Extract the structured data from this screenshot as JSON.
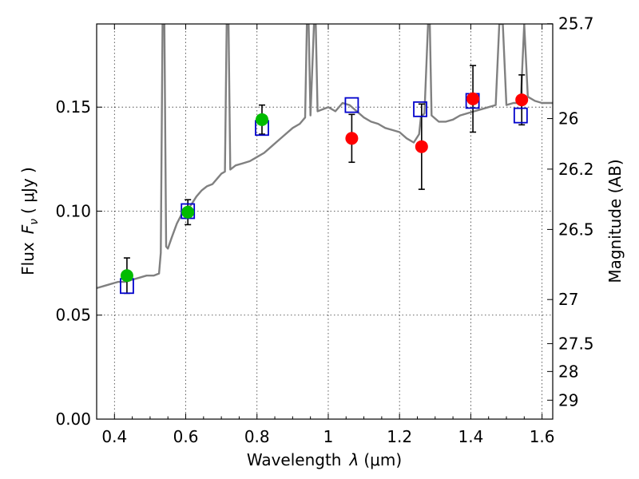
{
  "chart_data": {
    "type": "scatter",
    "title": "",
    "xlabel": "Wavelength",
    "xlabel_symbol": "λ",
    "xlabel_unit": "(μm)",
    "ylabel": "Flux",
    "ylabel_symbol": "F",
    "ylabel_subscript": "ν",
    "ylabel_unit": "( μJy )",
    "y2label": "Magnitude (AB)",
    "xlim": [
      0.35,
      1.63
    ],
    "ylim": [
      0.0,
      0.19
    ],
    "grid": true,
    "x_ticks": [
      0.4,
      0.6,
      0.8,
      1.0,
      1.2,
      1.4,
      1.6
    ],
    "x_tick_labels": [
      "0.4",
      "0.6",
      "0.8",
      "1",
      "1.2",
      "1.4",
      "1.6"
    ],
    "y_ticks": [
      0.0,
      0.05,
      0.1,
      0.15
    ],
    "y_tick_labels": [
      "0.00",
      "0.05",
      "0.10",
      "0.15"
    ],
    "y2_ticks": [
      {
        "label": "25.7",
        "flux": 0.1901
      },
      {
        "label": "26",
        "flux": 0.1445
      },
      {
        "label": "26.2",
        "flux": 0.1202
      },
      {
        "label": "26.5",
        "flux": 0.0912
      },
      {
        "label": "27",
        "flux": 0.0575
      },
      {
        "label": "27.5",
        "flux": 0.0363
      },
      {
        "label": "28",
        "flux": 0.0229
      },
      {
        "label": "29",
        "flux": 0.0091
      }
    ],
    "colors": {
      "model": "#808080",
      "green_points": "#00bb00",
      "red_points": "#ff0000",
      "model_photometry": "#0000cc",
      "errorbars": "#000000"
    },
    "model_spectrum": {
      "name": "",
      "points": [
        [
          0.35,
          0.063
        ],
        [
          0.37,
          0.064
        ],
        [
          0.39,
          0.065
        ],
        [
          0.41,
          0.066
        ],
        [
          0.43,
          0.066
        ],
        [
          0.45,
          0.067
        ],
        [
          0.47,
          0.068
        ],
        [
          0.49,
          0.069
        ],
        [
          0.51,
          0.069
        ],
        [
          0.525,
          0.07
        ],
        [
          0.53,
          0.08
        ],
        [
          0.535,
          0.19
        ],
        [
          0.54,
          0.19
        ],
        [
          0.545,
          0.083
        ],
        [
          0.55,
          0.082
        ],
        [
          0.56,
          0.087
        ],
        [
          0.575,
          0.094
        ],
        [
          0.59,
          0.099
        ],
        [
          0.6,
          0.1
        ],
        [
          0.615,
          0.103
        ],
        [
          0.63,
          0.107
        ],
        [
          0.645,
          0.11
        ],
        [
          0.66,
          0.112
        ],
        [
          0.675,
          0.113
        ],
        [
          0.69,
          0.116
        ],
        [
          0.7,
          0.118
        ],
        [
          0.71,
          0.119
        ],
        [
          0.715,
          0.19
        ],
        [
          0.72,
          0.19
        ],
        [
          0.725,
          0.12
        ],
        [
          0.74,
          0.122
        ],
        [
          0.76,
          0.123
        ],
        [
          0.78,
          0.124
        ],
        [
          0.8,
          0.126
        ],
        [
          0.82,
          0.128
        ],
        [
          0.84,
          0.131
        ],
        [
          0.86,
          0.134
        ],
        [
          0.88,
          0.137
        ],
        [
          0.9,
          0.14
        ],
        [
          0.92,
          0.142
        ],
        [
          0.935,
          0.145
        ],
        [
          0.94,
          0.19
        ],
        [
          0.945,
          0.19
        ],
        [
          0.95,
          0.146
        ],
        [
          0.96,
          0.19
        ],
        [
          0.965,
          0.19
        ],
        [
          0.97,
          0.148
        ],
        [
          1.0,
          0.15
        ],
        [
          1.02,
          0.148
        ],
        [
          1.04,
          0.152
        ],
        [
          1.06,
          0.151
        ],
        [
          1.08,
          0.148
        ],
        [
          1.1,
          0.145
        ],
        [
          1.12,
          0.143
        ],
        [
          1.14,
          0.142
        ],
        [
          1.16,
          0.14
        ],
        [
          1.18,
          0.139
        ],
        [
          1.2,
          0.138
        ],
        [
          1.22,
          0.135
        ],
        [
          1.24,
          0.133
        ],
        [
          1.255,
          0.137
        ],
        [
          1.26,
          0.145
        ],
        [
          1.27,
          0.147
        ],
        [
          1.28,
          0.19
        ],
        [
          1.285,
          0.19
        ],
        [
          1.29,
          0.146
        ],
        [
          1.31,
          0.143
        ],
        [
          1.33,
          0.143
        ],
        [
          1.35,
          0.144
        ],
        [
          1.37,
          0.146
        ],
        [
          1.39,
          0.147
        ],
        [
          1.41,
          0.148
        ],
        [
          1.43,
          0.149
        ],
        [
          1.45,
          0.15
        ],
        [
          1.47,
          0.151
        ],
        [
          1.48,
          0.19
        ],
        [
          1.49,
          0.19
        ],
        [
          1.5,
          0.151
        ],
        [
          1.52,
          0.152
        ],
        [
          1.54,
          0.152
        ],
        [
          1.55,
          0.19
        ],
        [
          1.56,
          0.155
        ],
        [
          1.58,
          0.153
        ],
        [
          1.6,
          0.152
        ],
        [
          1.63,
          0.152
        ]
      ]
    },
    "observed_optical": {
      "name": "",
      "points": [
        {
          "x": 0.435,
          "y": 0.069,
          "err": 0.0085
        },
        {
          "x": 0.606,
          "y": 0.0995,
          "err": 0.006
        },
        {
          "x": 0.814,
          "y": 0.144,
          "err": 0.007
        }
      ]
    },
    "observed_nir": {
      "name": "",
      "points": [
        {
          "x": 1.066,
          "y": 0.135,
          "err": 0.0115
        },
        {
          "x": 1.262,
          "y": 0.131,
          "err": 0.0205
        },
        {
          "x": 1.406,
          "y": 0.154,
          "err": 0.016
        },
        {
          "x": 1.543,
          "y": 0.1535,
          "err": 0.012
        }
      ]
    },
    "model_photometry": {
      "name": "",
      "points": [
        {
          "x": 0.435,
          "y": 0.064
        },
        {
          "x": 0.606,
          "y": 0.1
        },
        {
          "x": 0.814,
          "y": 0.14
        },
        {
          "x": 1.066,
          "y": 0.151
        },
        {
          "x": 1.258,
          "y": 0.149
        },
        {
          "x": 1.405,
          "y": 0.153
        },
        {
          "x": 1.54,
          "y": 0.146
        }
      ]
    }
  }
}
